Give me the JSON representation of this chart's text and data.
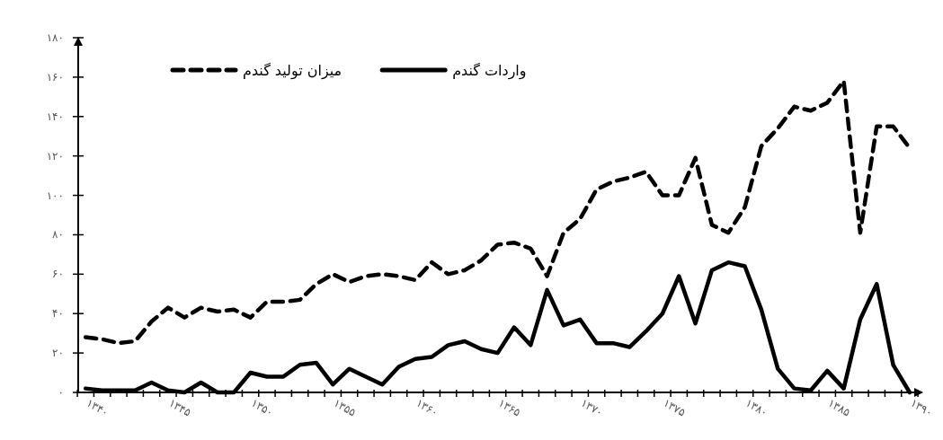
{
  "chart_data": {
    "type": "line",
    "categories": [
      "۱۳۴۰",
      null,
      null,
      null,
      null,
      "۱۳۴۵",
      null,
      null,
      null,
      null,
      "۱۳۵۰",
      null,
      null,
      null,
      null,
      "۱۳۵۵",
      null,
      null,
      null,
      null,
      "۱۳۶۰",
      null,
      null,
      null,
      null,
      "۱۳۶۵",
      null,
      null,
      null,
      null,
      "۱۳۷۰",
      null,
      null,
      null,
      null,
      "۱۳۷۵",
      null,
      null,
      null,
      null,
      "۱۳۸۰",
      null,
      null,
      null,
      null,
      "۱۳۸۵",
      null,
      null,
      null,
      null,
      "۱۳۹۰"
    ],
    "series": [
      {
        "name": "میزان تولید گندم",
        "color": "#000000",
        "line_style": "dashed",
        "values": [
          28,
          27,
          25,
          26,
          36,
          43,
          38,
          43,
          41,
          42,
          38,
          46,
          46,
          47,
          55,
          60,
          56,
          59,
          60,
          59,
          57,
          66,
          60,
          62,
          67,
          75,
          76,
          73,
          59,
          81,
          88,
          103,
          107,
          109,
          112,
          100,
          100,
          119,
          85,
          81,
          94,
          125,
          134,
          145,
          143,
          147,
          158,
          81,
          135,
          135,
          124
        ]
      },
      {
        "name": "واردات گندم",
        "color": "#000000",
        "line_style": "solid",
        "values": [
          2,
          1,
          1,
          1,
          5,
          1,
          0,
          5,
          0,
          0,
          10,
          8,
          8,
          14,
          15,
          4,
          12,
          8,
          4,
          13,
          17,
          18,
          24,
          26,
          22,
          20,
          33,
          24,
          52,
          34,
          37,
          25,
          25,
          23,
          31,
          40,
          59,
          35,
          62,
          66,
          64,
          42,
          12,
          2,
          1,
          11,
          2,
          37,
          55,
          14,
          0
        ]
      }
    ],
    "ylim": [
      0,
      180
    ],
    "yticks": [
      {
        "value": 0,
        "label": "۰"
      },
      {
        "value": 20,
        "label": "۲۰"
      },
      {
        "value": 40,
        "label": "۴۰"
      },
      {
        "value": 60,
        "label": "۶۰"
      },
      {
        "value": 80,
        "label": "۸۰"
      },
      {
        "value": 100,
        "label": "۱۰۰"
      },
      {
        "value": 120,
        "label": "۱۲۰"
      },
      {
        "value": 140,
        "label": "۱۴۰"
      },
      {
        "value": 160,
        "label": "۱۶۰"
      },
      {
        "value": 180,
        "label": "۱۸۰"
      }
    ],
    "legend": "top"
  }
}
